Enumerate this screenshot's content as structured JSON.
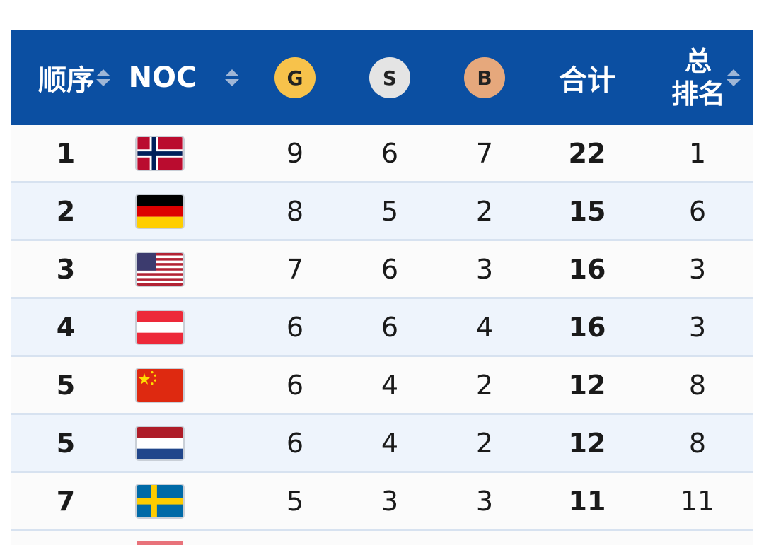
{
  "header": {
    "rank_label": "顺序",
    "noc_label": "NOC",
    "gold_label": "G",
    "silver_label": "S",
    "bronze_label": "B",
    "total_label": "合计",
    "overall_label_line1": "总",
    "overall_label_line2": "排名"
  },
  "colors": {
    "header_bg": "#0b4fa2",
    "gold": "#f7c24b",
    "silver": "#e4e4e4",
    "bronze": "#e6a87c"
  },
  "rows": [
    {
      "rank": "1",
      "flag": "norway-flag",
      "gold": "9",
      "silver": "6",
      "bronze": "7",
      "total": "22",
      "overall": "1"
    },
    {
      "rank": "2",
      "flag": "germany-flag",
      "gold": "8",
      "silver": "5",
      "bronze": "2",
      "total": "15",
      "overall": "6"
    },
    {
      "rank": "3",
      "flag": "usa-flag",
      "gold": "7",
      "silver": "6",
      "bronze": "3",
      "total": "16",
      "overall": "3"
    },
    {
      "rank": "4",
      "flag": "austria-flag",
      "gold": "6",
      "silver": "6",
      "bronze": "4",
      "total": "16",
      "overall": "3"
    },
    {
      "rank": "5",
      "flag": "china-flag",
      "gold": "6",
      "silver": "4",
      "bronze": "2",
      "total": "12",
      "overall": "8"
    },
    {
      "rank": "5",
      "flag": "netherlands-flag",
      "gold": "6",
      "silver": "4",
      "bronze": "2",
      "total": "12",
      "overall": "8"
    },
    {
      "rank": "7",
      "flag": "sweden-flag",
      "gold": "5",
      "silver": "3",
      "bronze": "3",
      "total": "11",
      "overall": "11"
    }
  ]
}
